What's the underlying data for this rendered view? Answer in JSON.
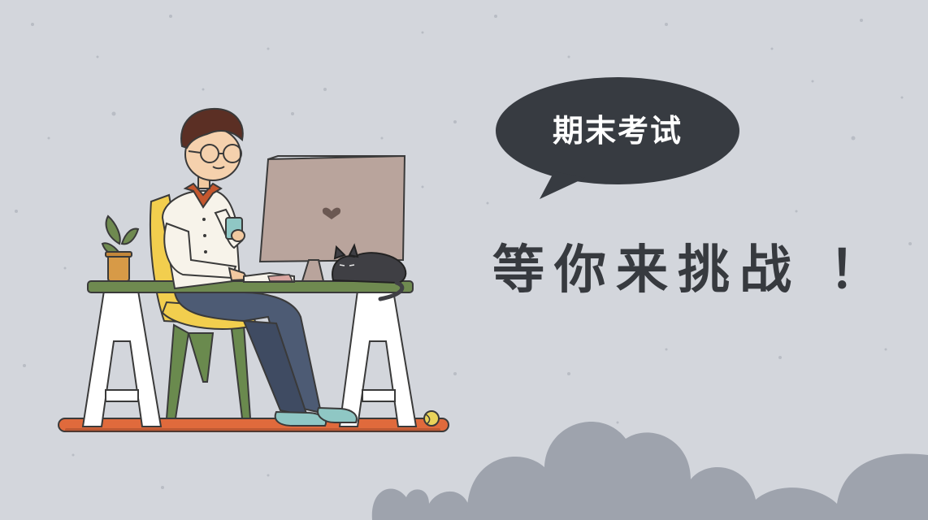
{
  "bubble": {
    "text": "期末考试"
  },
  "headline": {
    "text": "等你来挑战 ！"
  },
  "colors": {
    "background": "#d3d6dc",
    "bubble": "#373b41",
    "headline": "#373a3f",
    "clouds": "#9ea3ad"
  },
  "icons": [
    "speech-bubble-icon",
    "student-at-desk-illustration",
    "sleeping-cat-icon",
    "potted-plant-icon",
    "tennis-ball-icon",
    "heart-icon"
  ]
}
